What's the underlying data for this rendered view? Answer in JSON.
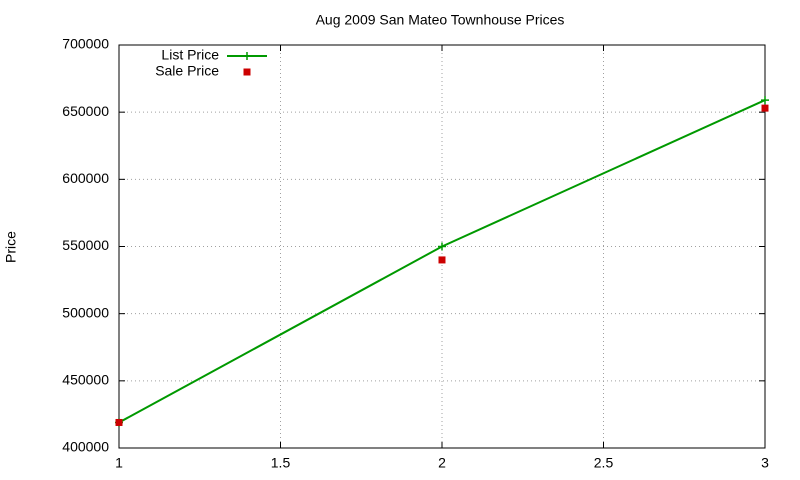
{
  "chart_data": {
    "type": "line",
    "title": "Aug 2009 San Mateo Townhouse Prices",
    "y_label": "Price",
    "x": [
      1,
      2,
      3
    ],
    "series": [
      {
        "name": "List Price",
        "color": "#009900",
        "style": "linespoints",
        "values": [
          419000,
          550000,
          659000
        ]
      },
      {
        "name": "Sale Price",
        "color": "#cc0000",
        "style": "points",
        "values": [
          419000,
          540000,
          653000
        ]
      }
    ],
    "xlim": [
      1,
      3
    ],
    "xticks": [
      1,
      1.5,
      2,
      2.5,
      3
    ],
    "ylim": [
      400000,
      700000
    ],
    "yticks": [
      400000,
      450000,
      500000,
      550000,
      600000,
      650000,
      700000
    ],
    "grid": true,
    "legend": "top-left"
  }
}
